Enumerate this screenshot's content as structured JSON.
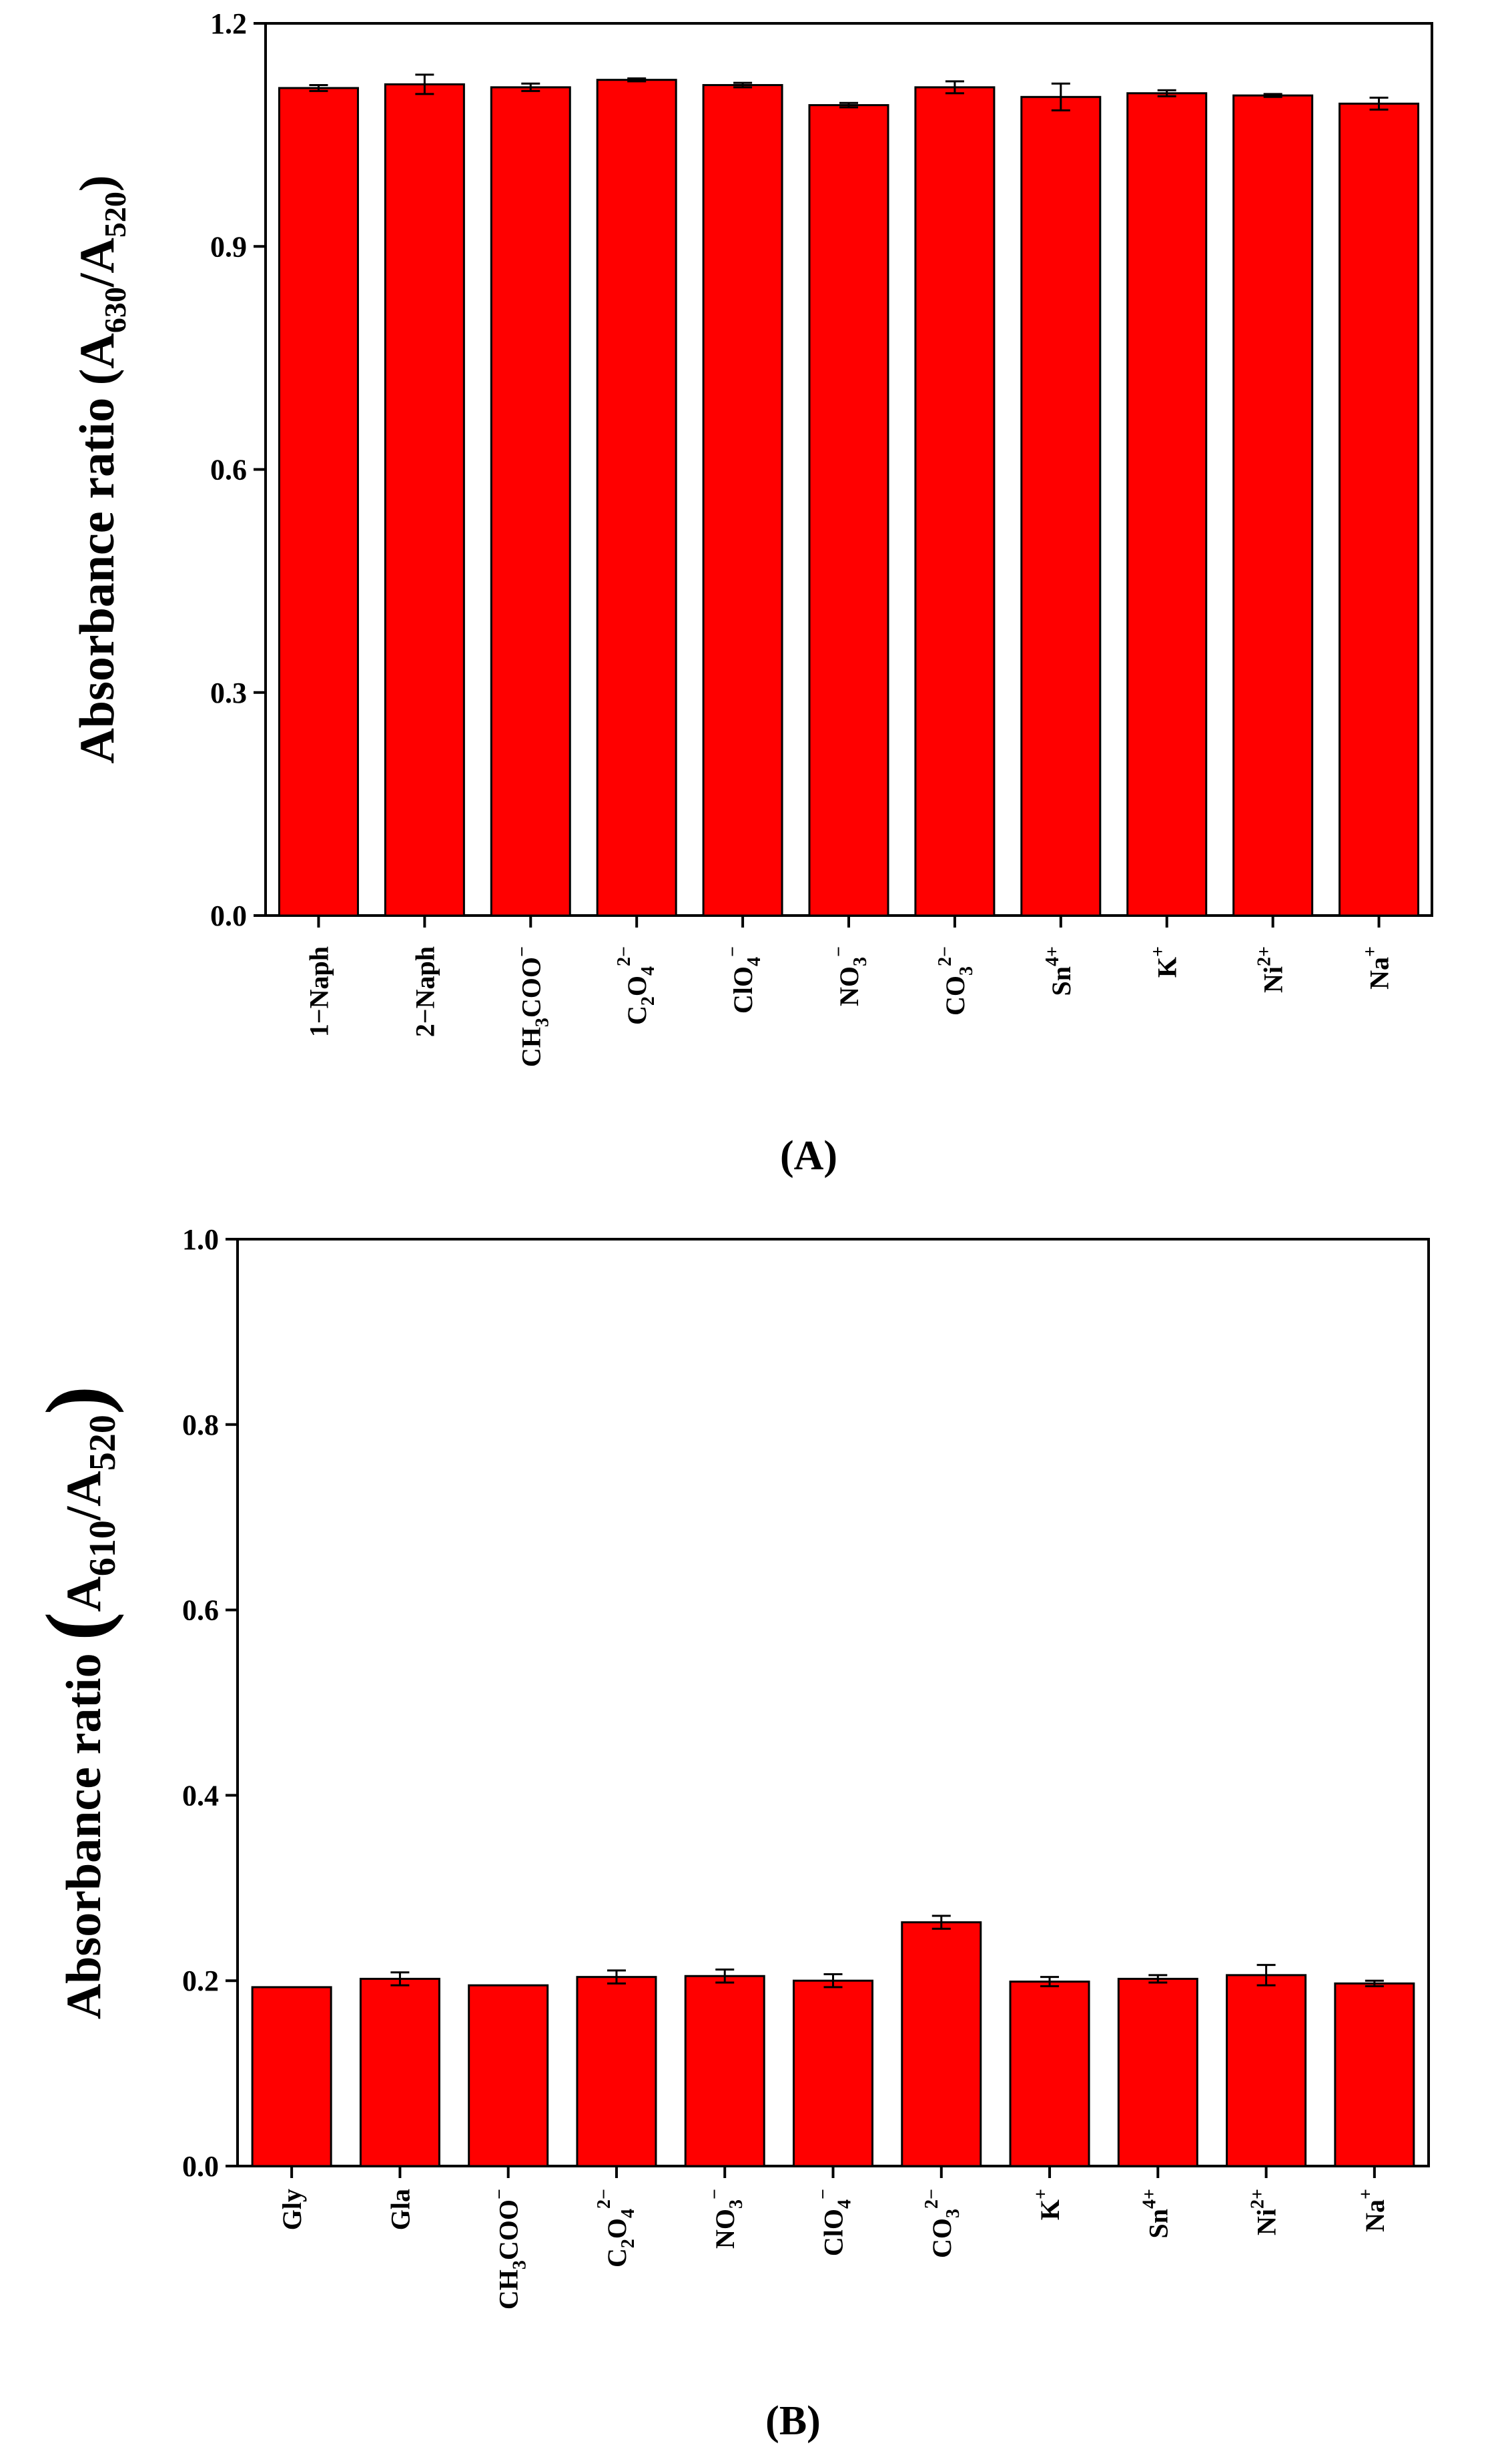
{
  "colors": {
    "bar_fill": "#ff0000",
    "bar_stroke": "#000000",
    "axis": "#000000",
    "background": "#ffffff"
  },
  "chart_data": [
    {
      "type": "bar",
      "panel_label": "(A)",
      "ylabel": "Absorbance ratio (A630/A520)",
      "ylabel_parts": {
        "prefix": "Absorbance ratio (A",
        "sub1": "630",
        "mid": "/A",
        "sub2": "520",
        "suffix": ")"
      },
      "ylim": [
        0.0,
        1.2
      ],
      "yticks": [
        0.0,
        0.3,
        0.6,
        0.9,
        1.2
      ],
      "ytick_labels": [
        "0.0",
        "0.3",
        "0.6",
        "0.9",
        "1.2"
      ],
      "grid": false,
      "categories": [
        {
          "base": "1−Naph"
        },
        {
          "base": "2−Naph"
        },
        {
          "base": "CH",
          "sub": "3",
          "tail": "COO",
          "sup": "−"
        },
        {
          "base": "C",
          "sup": "2−",
          "sub": "2",
          "tail": "O",
          "sub2": "4"
        },
        {
          "base": "ClO",
          "sup": "−",
          "sub": "4"
        },
        {
          "base": "NO",
          "sup": "−",
          "sub": "3"
        },
        {
          "base": "CO",
          "sup": "2−",
          "sub": "3"
        },
        {
          "base": "Sn",
          "sup": "4+"
        },
        {
          "base": "K",
          "sup": "+"
        },
        {
          "base": "Ni",
          "sup": "2+"
        },
        {
          "base": "Na",
          "sup": "+"
        }
      ],
      "values": [
        1.113,
        1.118,
        1.114,
        1.124,
        1.117,
        1.09,
        1.114,
        1.101,
        1.106,
        1.103,
        1.092
      ],
      "errors": [
        0.004,
        0.013,
        0.005,
        0.002,
        0.003,
        0.003,
        0.008,
        0.018,
        0.004,
        0.002,
        0.008
      ]
    },
    {
      "type": "bar",
      "panel_label": "(B)",
      "ylabel": "Absorbance ratio (A610/A520)",
      "ylabel_parts": {
        "prefix": "Absorbance ratio ",
        "paren_open": "(",
        "base": "A",
        "sub1": "610",
        "mid": "/A",
        "sub2": "520",
        "paren_close": ")"
      },
      "ylim": [
        0.0,
        1.0
      ],
      "yticks": [
        0.0,
        0.2,
        0.4,
        0.6,
        0.8,
        1.0
      ],
      "ytick_labels": [
        "0.0",
        "0.2",
        "0.4",
        "0.6",
        "0.8",
        "1.0"
      ],
      "grid": false,
      "categories": [
        {
          "base": "Gly"
        },
        {
          "base": "Gla"
        },
        {
          "base": "CH",
          "sub": "3",
          "tail": "COO",
          "sup": "−"
        },
        {
          "base": "C",
          "sup": "2−",
          "sub": "2",
          "tail": "O",
          "sub2": "4"
        },
        {
          "base": "NO",
          "sup": "−",
          "sub": "3"
        },
        {
          "base": "ClO",
          "sup": "−",
          "sub": "4"
        },
        {
          "base": "CO",
          "sup": "2−",
          "sub": "3"
        },
        {
          "base": "K",
          "sup": "+"
        },
        {
          "base": "Sn",
          "sup": "4+"
        },
        {
          "base": "Ni",
          "sup": "2+"
        },
        {
          "base": "Na",
          "sup": "+"
        }
      ],
      "values": [
        0.193,
        0.202,
        0.195,
        0.204,
        0.205,
        0.2,
        0.263,
        0.199,
        0.202,
        0.206,
        0.197
      ],
      "errors": [
        0.0,
        0.007,
        0.0,
        0.007,
        0.007,
        0.007,
        0.007,
        0.005,
        0.004,
        0.011,
        0.003
      ]
    }
  ]
}
